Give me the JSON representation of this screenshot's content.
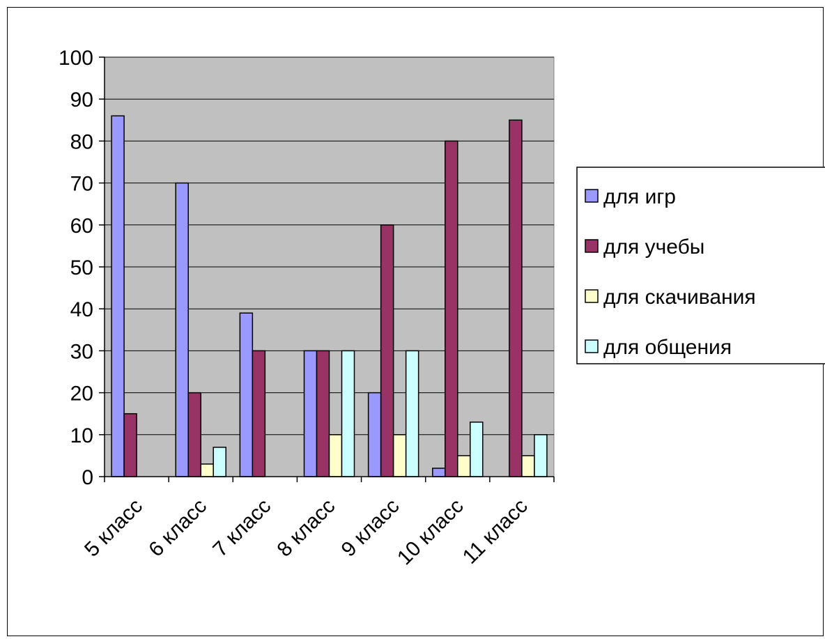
{
  "chart_data": {
    "type": "bar",
    "title": "",
    "xlabel": "",
    "ylabel": "",
    "ylim": [
      0,
      100
    ],
    "yticks": [
      0,
      10,
      20,
      30,
      40,
      50,
      60,
      70,
      80,
      90,
      100
    ],
    "grid": true,
    "legend_position": "right",
    "plot_background": "#c0c0c0",
    "categories": [
      "5 класс",
      "6 класс",
      "7 класс",
      "8 класс",
      "9 класс",
      "10 класс",
      "11 класс"
    ],
    "series": [
      {
        "name": "для игр",
        "color": "#9999ff",
        "values": [
          86,
          70,
          39,
          30,
          20,
          2,
          0
        ]
      },
      {
        "name": "для учебы",
        "color": "#993366",
        "values": [
          15,
          20,
          30,
          30,
          60,
          80,
          85
        ]
      },
      {
        "name": "для скачивания",
        "color": "#ffffcc",
        "values": [
          0,
          3,
          0,
          10,
          10,
          5,
          5
        ]
      },
      {
        "name": "для общения",
        "color": "#ccffff",
        "values": [
          0,
          7,
          0,
          30,
          30,
          13,
          10
        ]
      }
    ]
  }
}
